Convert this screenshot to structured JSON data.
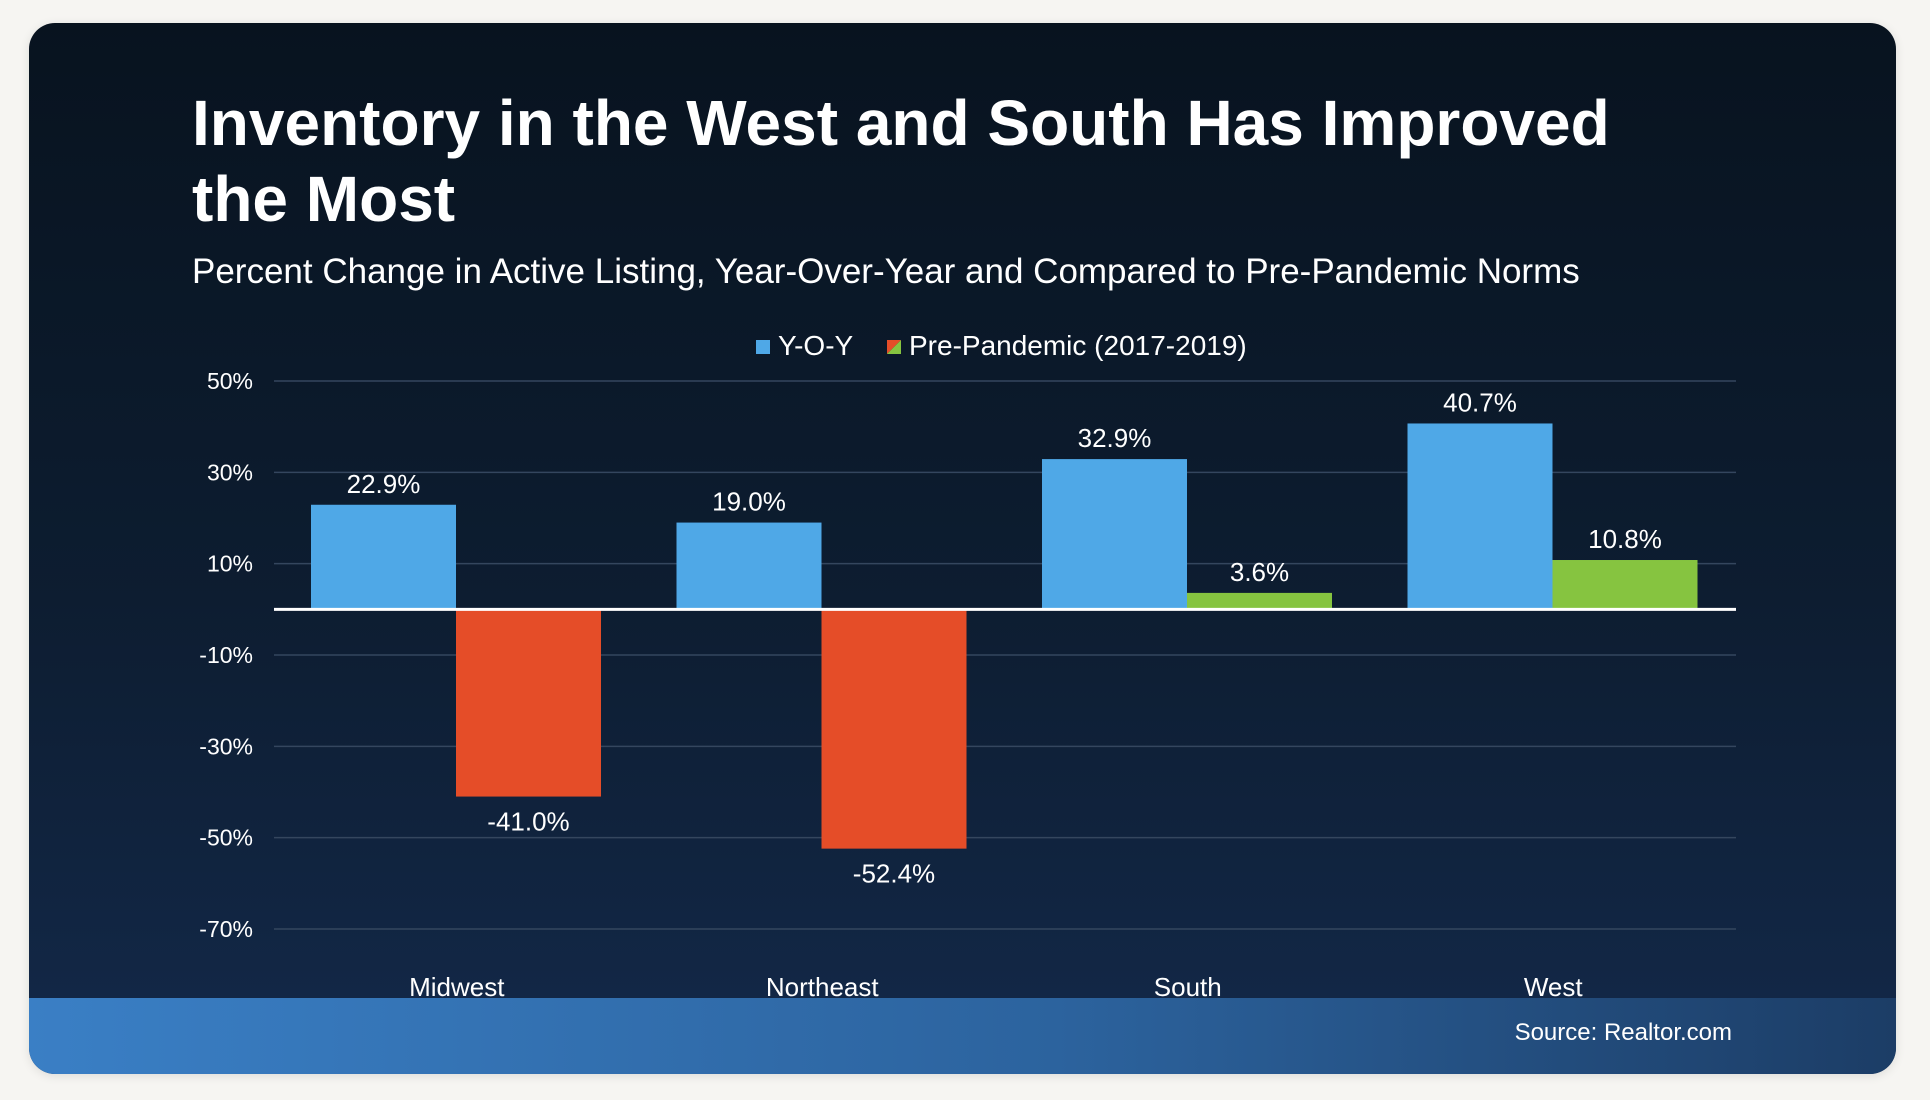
{
  "chart_data": {
    "type": "bar",
    "title": "Inventory in the West and South Has Improved\nthe Most",
    "subtitle": "Percent Change in Active Listing, Year-Over-Year and Compared to Pre-Pandemic Norms",
    "categories": [
      "Midwest",
      "Northeast",
      "South",
      "West"
    ],
    "series": [
      {
        "name": "Y-O-Y",
        "values": [
          22.9,
          19.0,
          32.9,
          40.7
        ],
        "labels": [
          "22.9%",
          "19.0%",
          "32.9%",
          "40.7%"
        ],
        "color": "#4fa8e7"
      },
      {
        "name": "Pre-Pandemic (2017-2019)",
        "values": [
          -41.0,
          -52.4,
          3.6,
          10.8
        ],
        "labels": [
          "-41.0%",
          "-52.4%",
          "3.6%",
          "10.8%"
        ],
        "positive_color": "#86c440",
        "negative_color": "#e54d28"
      }
    ],
    "y_ticks": [
      {
        "value": 50,
        "label": "50%"
      },
      {
        "value": 30,
        "label": "30%"
      },
      {
        "value": 10,
        "label": "10%"
      },
      {
        "value": -10,
        "label": "-10%"
      },
      {
        "value": -30,
        "label": "-30%"
      },
      {
        "value": -50,
        "label": "-50%"
      },
      {
        "value": -70,
        "label": "-70%"
      }
    ],
    "ylim": [
      -70,
      50
    ],
    "grid": true,
    "legend_position": "top-center",
    "xlabel": "",
    "ylabel": ""
  },
  "footer": {
    "source": "Source: Realtor.com"
  }
}
